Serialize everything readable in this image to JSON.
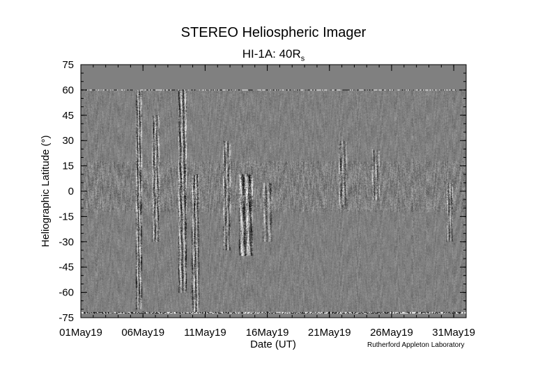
{
  "chart": {
    "title": "STEREO Heliospheric Imager",
    "subtitle_main": "HI-1A: 40R",
    "subtitle_sub": "s",
    "credit": "Rutherford Appleton Laboratory"
  },
  "chart_data": {
    "type": "heatmap",
    "title": "STEREO Heliospheric Imager",
    "subtitle": "HI-1A: 40Rs",
    "xlabel": "Date (UT)",
    "ylabel": "Heliographic Latitude (°)",
    "x_tick_labels": [
      "01May19",
      "06May19",
      "11May19",
      "16May19",
      "21May19",
      "26May19",
      "31May19"
    ],
    "x_ticks_day": [
      1,
      6,
      11,
      16,
      21,
      26,
      31
    ],
    "xlim_day": [
      1,
      32
    ],
    "y_ticks": [
      75,
      60,
      45,
      30,
      15,
      0,
      -15,
      -30,
      -45,
      -60,
      -75
    ],
    "ylim": [
      -75,
      75
    ],
    "data_latitude_range": [
      -72,
      60
    ],
    "colormap": "grayscale difference image",
    "no_data_color": "#808080",
    "grid": false,
    "features": [
      {
        "start_day": 5.4,
        "end_day": 5.9,
        "lat_min": -70,
        "lat_max": 60,
        "strength": 1.0
      },
      {
        "start_day": 6.7,
        "end_day": 7.3,
        "lat_min": -30,
        "lat_max": 45,
        "strength": 0.8
      },
      {
        "start_day": 8.8,
        "end_day": 9.5,
        "lat_min": -60,
        "lat_max": 60,
        "strength": 1.0
      },
      {
        "start_day": 9.9,
        "end_day": 10.5,
        "lat_min": -72,
        "lat_max": 10,
        "strength": 0.9
      },
      {
        "start_day": 12.4,
        "end_day": 13.0,
        "lat_min": -35,
        "lat_max": 30,
        "strength": 0.7
      },
      {
        "start_day": 13.7,
        "end_day": 14.8,
        "lat_min": -38,
        "lat_max": 10,
        "strength": 1.0
      },
      {
        "start_day": 15.6,
        "end_day": 16.4,
        "lat_min": -30,
        "lat_max": 5,
        "strength": 0.6
      },
      {
        "start_day": 21.7,
        "end_day": 22.4,
        "lat_min": -10,
        "lat_max": 30,
        "strength": 0.6
      },
      {
        "start_day": 24.4,
        "end_day": 25.0,
        "lat_min": -5,
        "lat_max": 25,
        "strength": 0.6
      },
      {
        "start_day": 30.4,
        "end_day": 30.9,
        "lat_min": -30,
        "lat_max": 5,
        "strength": 0.7
      }
    ],
    "equatorial_band": {
      "lat_min": -12,
      "lat_max": 18,
      "strength": 0.5
    }
  }
}
